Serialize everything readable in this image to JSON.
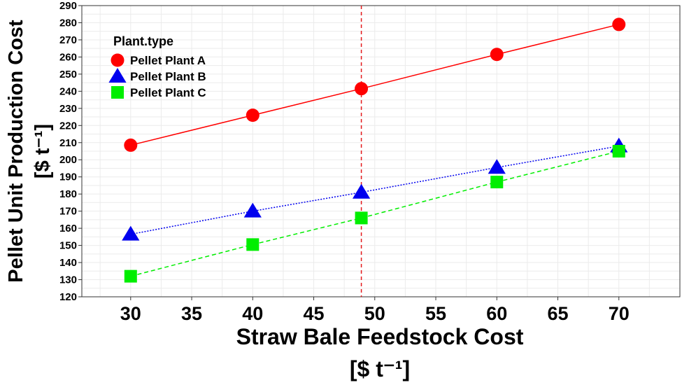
{
  "chart_data": {
    "type": "line",
    "xlabel": "Straw Bale Feedstock Cost",
    "xunit": "[$  t⁻¹]",
    "ylabel": "Pellet Unit Production Cost",
    "yunit": "[$ t⁻¹]",
    "xlim": [
      26,
      75
    ],
    "ylim": [
      120,
      290
    ],
    "xticks": [
      30,
      35,
      40,
      45,
      50,
      55,
      60,
      65,
      70
    ],
    "yticks": [
      120,
      130,
      140,
      150,
      160,
      170,
      180,
      190,
      200,
      210,
      220,
      230,
      240,
      250,
      260,
      270,
      280,
      290
    ],
    "grid": true,
    "reference_line": {
      "x": 48.9,
      "color": "#e41a1c",
      "style": "dashed"
    },
    "legend": {
      "title": "Plant.type",
      "position": "top-left"
    },
    "x": [
      30,
      40,
      48.9,
      60,
      70
    ],
    "series": [
      {
        "name": "Pellet Plant A",
        "values": [
          208.5,
          226,
          241.5,
          261.5,
          279
        ],
        "color": "#ff0000",
        "marker": "circle",
        "line_style": "solid"
      },
      {
        "name": "Pellet Plant B",
        "values": [
          156.5,
          170,
          181,
          195.5,
          208
        ],
        "color": "#0000ee",
        "marker": "triangle",
        "line_style": "dotted"
      },
      {
        "name": "Pellet Plant C",
        "values": [
          132,
          150.5,
          166,
          187,
          205
        ],
        "color": "#00ee00",
        "marker": "square",
        "line_style": "dashed"
      }
    ]
  }
}
